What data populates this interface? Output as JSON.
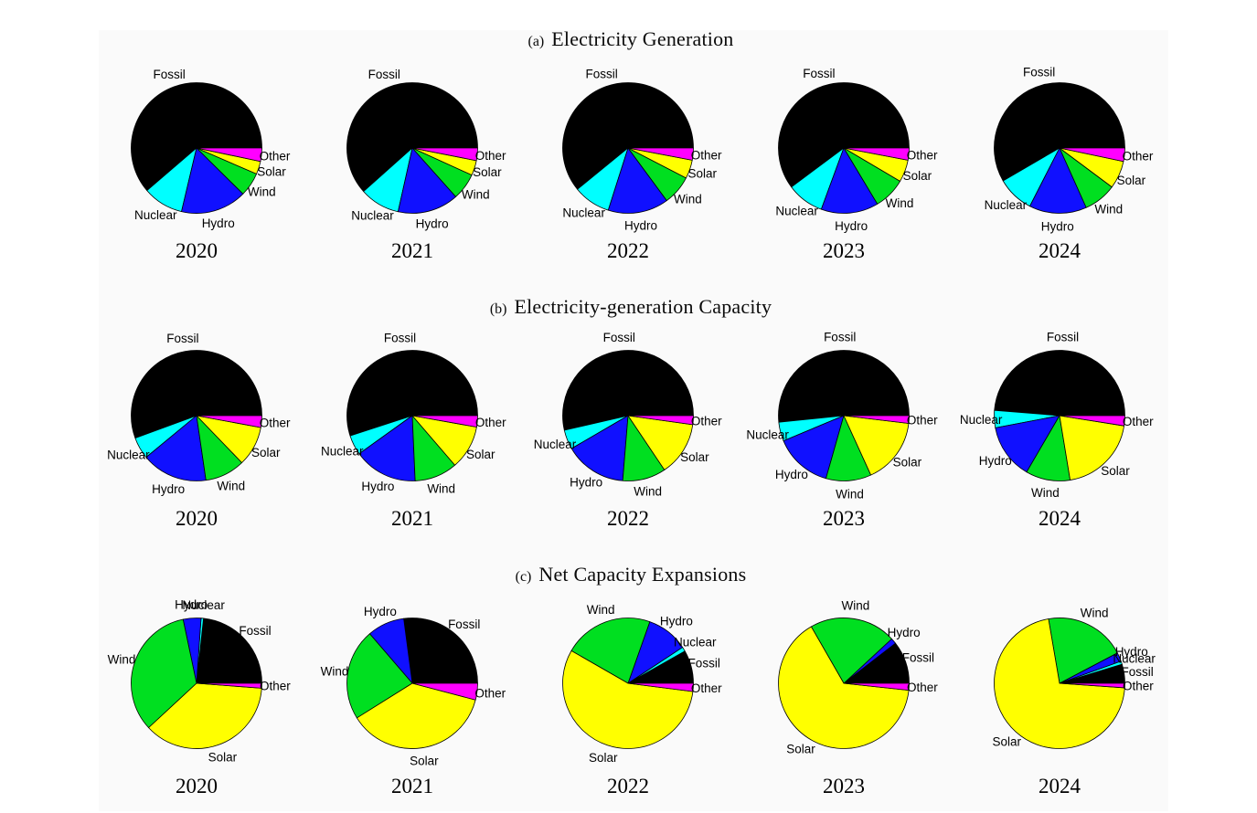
{
  "figure": {
    "description": "Three rows of pie charts (2020-2024) showing world electricity shares by source",
    "background_color": "#fafafa",
    "page_background": "#ffffff"
  },
  "categories": [
    "Fossil",
    "Nuclear",
    "Hydro",
    "Wind",
    "Solar",
    "Other"
  ],
  "colors": {
    "Fossil": "#000000",
    "Nuclear": "#00ffff",
    "Hydro": "#1010ff",
    "Wind": "#00df20",
    "Solar": "#ffff00",
    "Other": "#ff00ff"
  },
  "chart_data": [
    {
      "type": "pie",
      "panel_label": "(a)",
      "title": "Electricity Generation",
      "values_unit": "percent of total (estimated from wedge angles)",
      "wedge_order": "Fossil, Nuclear, Hydro, Wind, Solar, Other counterclockwise from 3 o'clock",
      "legend_position": "labels outside wedges",
      "years": [
        "2020",
        "2021",
        "2022",
        "2023",
        "2024"
      ],
      "series": [
        {
          "year": "2020",
          "values": {
            "Fossil": 61.3,
            "Nuclear": 10.0,
            "Hydro": 16.3,
            "Wind": 5.9,
            "Solar": 3.2,
            "Other": 3.3
          }
        },
        {
          "year": "2021",
          "values": {
            "Fossil": 61.6,
            "Nuclear": 9.9,
            "Hydro": 15.1,
            "Wind": 6.6,
            "Solar": 3.7,
            "Other": 3.1
          }
        },
        {
          "year": "2022",
          "values": {
            "Fossil": 60.9,
            "Nuclear": 9.2,
            "Hydro": 15.0,
            "Wind": 7.3,
            "Solar": 4.6,
            "Other": 3.0
          }
        },
        {
          "year": "2023",
          "values": {
            "Fossil": 60.2,
            "Nuclear": 9.2,
            "Hydro": 14.2,
            "Wind": 7.9,
            "Solar": 5.5,
            "Other": 3.0
          }
        },
        {
          "year": "2024",
          "values": {
            "Fossil": 58.4,
            "Nuclear": 9.1,
            "Hydro": 14.2,
            "Wind": 8.1,
            "Solar": 6.9,
            "Other": 3.3
          }
        }
      ]
    },
    {
      "type": "pie",
      "panel_label": "(b)",
      "title": "Electricity-generation Capacity",
      "values_unit": "percent of total (estimated from wedge angles)",
      "wedge_order": "Fossil, Nuclear, Hydro, Wind, Solar, Other counterclockwise from 3 o'clock",
      "legend_position": "labels outside wedges",
      "years": [
        "2020",
        "2021",
        "2022",
        "2023",
        "2024"
      ],
      "series": [
        {
          "year": "2020",
          "values": {
            "Fossil": 55.6,
            "Nuclear": 5.4,
            "Hydro": 16.3,
            "Wind": 9.9,
            "Solar": 9.9,
            "Other": 2.9
          }
        },
        {
          "year": "2021",
          "values": {
            "Fossil": 55.0,
            "Nuclear": 4.9,
            "Hydro": 15.8,
            "Wind": 10.6,
            "Solar": 10.9,
            "Other": 2.8
          }
        },
        {
          "year": "2022",
          "values": {
            "Fossil": 53.6,
            "Nuclear": 4.8,
            "Hydro": 15.3,
            "Wind": 10.7,
            "Solar": 13.4,
            "Other": 2.2
          }
        },
        {
          "year": "2023",
          "values": {
            "Fossil": 51.6,
            "Nuclear": 4.7,
            "Hydro": 14.3,
            "Wind": 11.2,
            "Solar": 16.3,
            "Other": 1.9
          }
        },
        {
          "year": "2024",
          "values": {
            "Fossil": 48.7,
            "Nuclear": 4.3,
            "Hydro": 13.6,
            "Wind": 11.0,
            "Solar": 19.9,
            "Other": 2.5
          }
        }
      ]
    },
    {
      "type": "pie",
      "panel_label": "(c)",
      "title": "Net Capacity Expansions",
      "values_unit": "percent of total (estimated from wedge angles)",
      "wedge_order": "Fossil, Nuclear, Hydro, Wind, Solar, Other counterclockwise from 3 o'clock",
      "legend_position": "labels outside wedges",
      "years": [
        "2020",
        "2021",
        "2022",
        "2023",
        "2024"
      ],
      "series": [
        {
          "year": "2020",
          "values": {
            "Fossil": 23.3,
            "Nuclear": 0.6,
            "Hydro": 4.4,
            "Wind": 33.6,
            "Solar": 36.9,
            "Other": 1.2
          }
        },
        {
          "year": "2021",
          "values": {
            "Fossil": 27.1,
            "Nuclear": 0.0,
            "Hydro": 9.2,
            "Wind": 22.6,
            "Solar": 37.0,
            "Other": 4.1
          }
        },
        {
          "year": "2022",
          "values": {
            "Fossil": 8.2,
            "Nuclear": 1.1,
            "Hydro": 10.3,
            "Wind": 22.1,
            "Solar": 56.3,
            "Other": 2.0
          }
        },
        {
          "year": "2023",
          "values": {
            "Fossil": 10.5,
            "Nuclear": 0.0,
            "Hydro": 1.4,
            "Wind": 21.4,
            "Solar": 65.0,
            "Other": 1.7
          }
        },
        {
          "year": "2024",
          "values": {
            "Fossil": 4.7,
            "Nuclear": 0.8,
            "Hydro": 2.2,
            "Wind": 20.0,
            "Solar": 71.2,
            "Other": 1.1
          }
        }
      ]
    }
  ],
  "layout": {
    "title_tops": [
      28,
      321,
      614
    ],
    "pie_row_tops": [
      76,
      369,
      662
    ],
    "year_row_tops": [
      262,
      555,
      848
    ]
  }
}
